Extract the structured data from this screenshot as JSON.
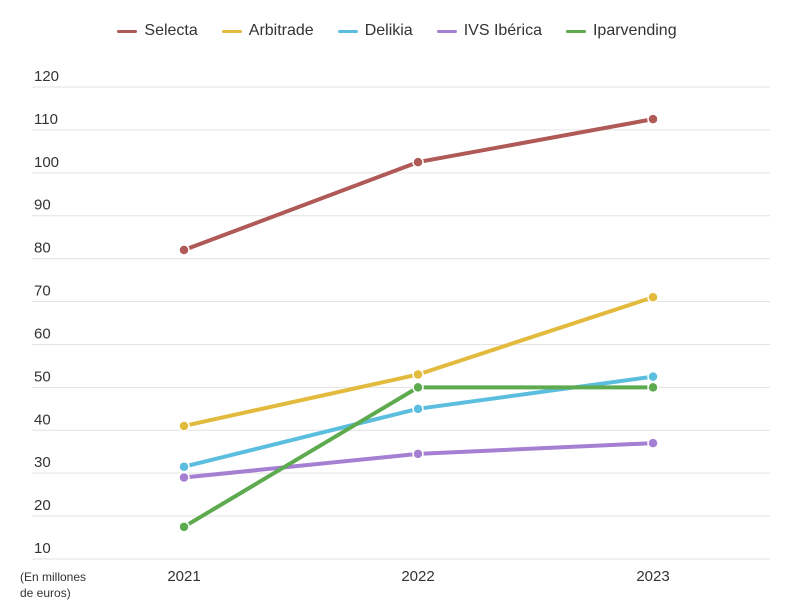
{
  "chart_data": {
    "type": "line",
    "title": "",
    "xlabel": "",
    "ylabel": "",
    "unit_label_line1": "(En millones",
    "unit_label_line2": "de euros)",
    "categories": [
      "2021",
      "2022",
      "2023"
    ],
    "yticks": [
      10,
      20,
      30,
      40,
      50,
      60,
      70,
      80,
      90,
      100,
      110,
      120
    ],
    "ylim": [
      10,
      120
    ],
    "grid": true,
    "legend_position": "top-center",
    "series": [
      {
        "name": "Selecta",
        "color": "#b05a57",
        "values": [
          82,
          102.5,
          112.5
        ]
      },
      {
        "name": "Arbitrade",
        "color": "#e2bb3e",
        "values": [
          41,
          53,
          71
        ]
      },
      {
        "name": "Delikia",
        "color": "#5bbedf",
        "values": [
          31.5,
          45,
          52.5
        ]
      },
      {
        "name": "IVS Ibérica",
        "color": "#a57fd1",
        "values": [
          29,
          34.5,
          37
        ]
      },
      {
        "name": "Iparvending",
        "color": "#5daa4f",
        "values": [
          17.5,
          50,
          50
        ]
      }
    ]
  }
}
